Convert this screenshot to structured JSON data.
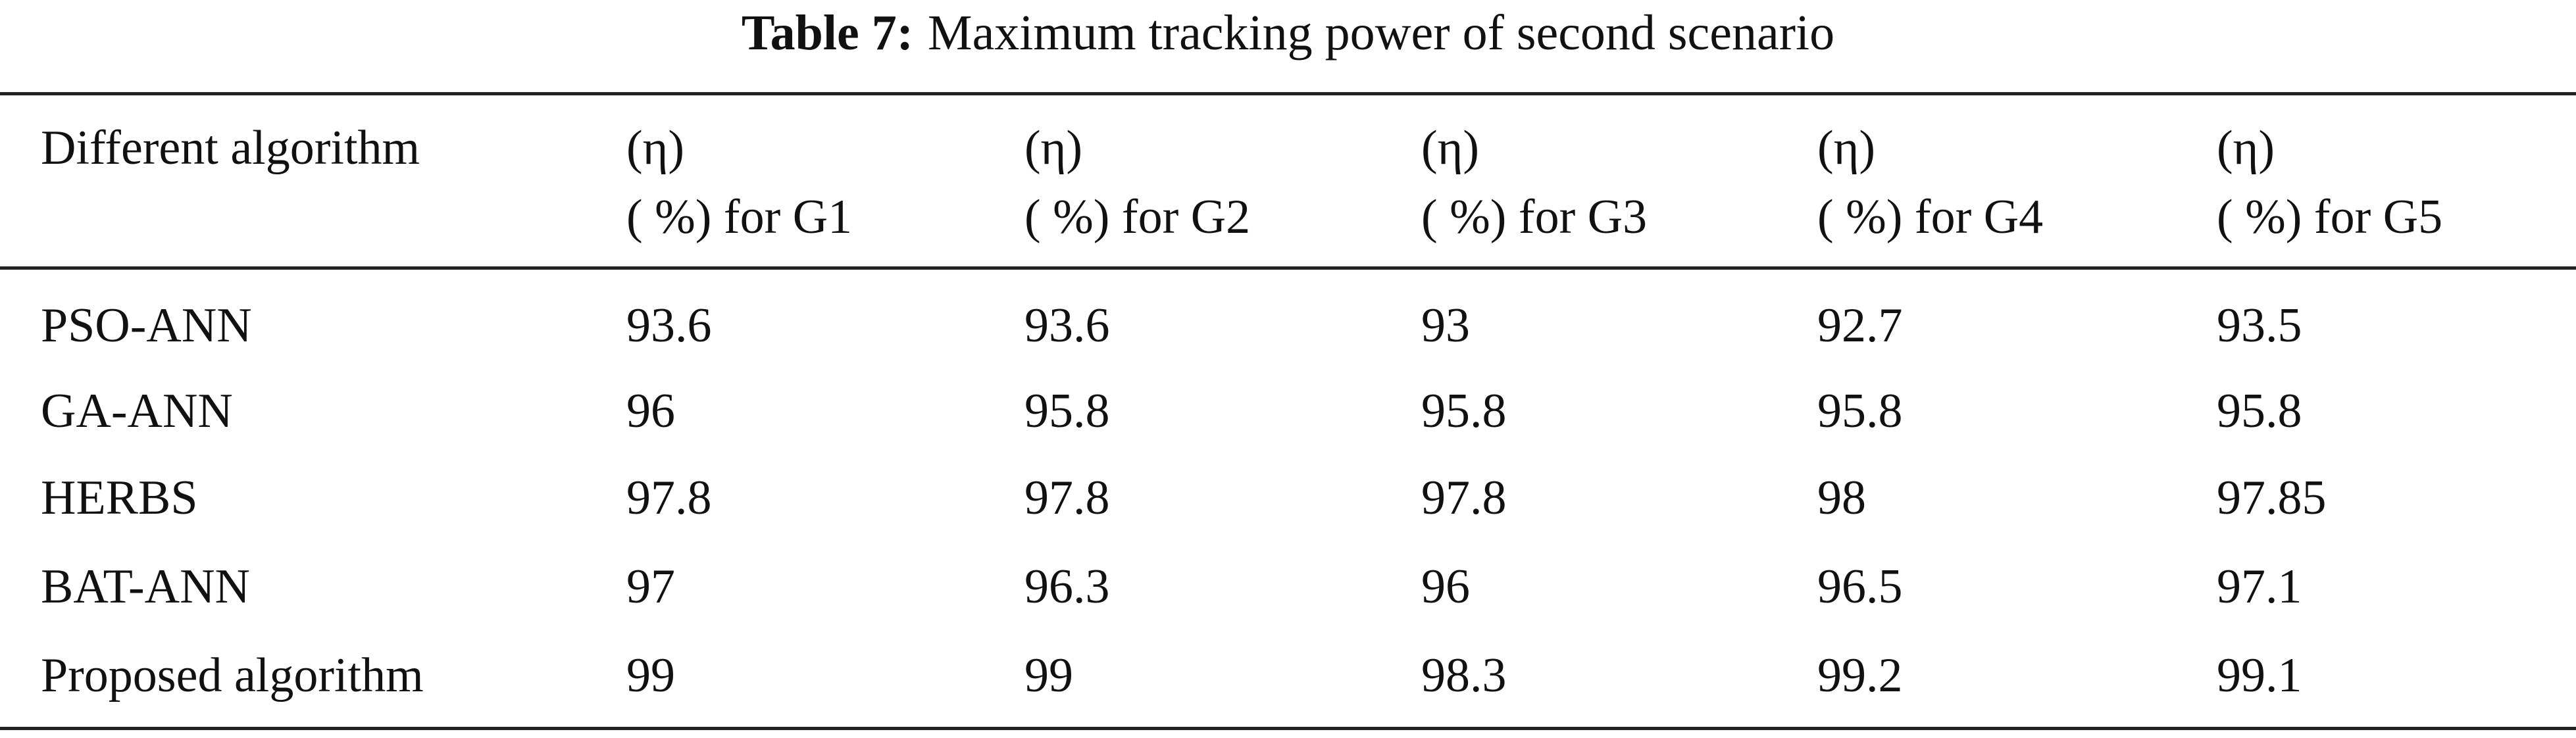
{
  "table": {
    "caption": {
      "label": "Table 7:",
      "text": "Maximum tracking power of second scenario"
    },
    "header": [
      [
        "Different algorithm"
      ],
      [
        "(η)",
        "( %) for G1"
      ],
      [
        "(η)",
        "( %) for G2"
      ],
      [
        "(η)",
        "( %) for G3"
      ],
      [
        "(η)",
        "( %) for G4"
      ],
      [
        "(η)",
        "( %) for G5"
      ]
    ],
    "rows": [
      [
        "PSO-ANN",
        93.6,
        93.6,
        93,
        92.7,
        93.5
      ],
      [
        "GA-ANN",
        96,
        95.8,
        95.8,
        95.8,
        95.8
      ],
      [
        "HERBS",
        97.8,
        97.8,
        97.8,
        98,
        97.85
      ],
      [
        "BAT-ANN",
        97,
        96.3,
        96,
        96.5,
        97.1
      ],
      [
        "Proposed algorithm",
        99,
        99,
        98.3,
        99.2,
        99.1
      ]
    ]
  }
}
